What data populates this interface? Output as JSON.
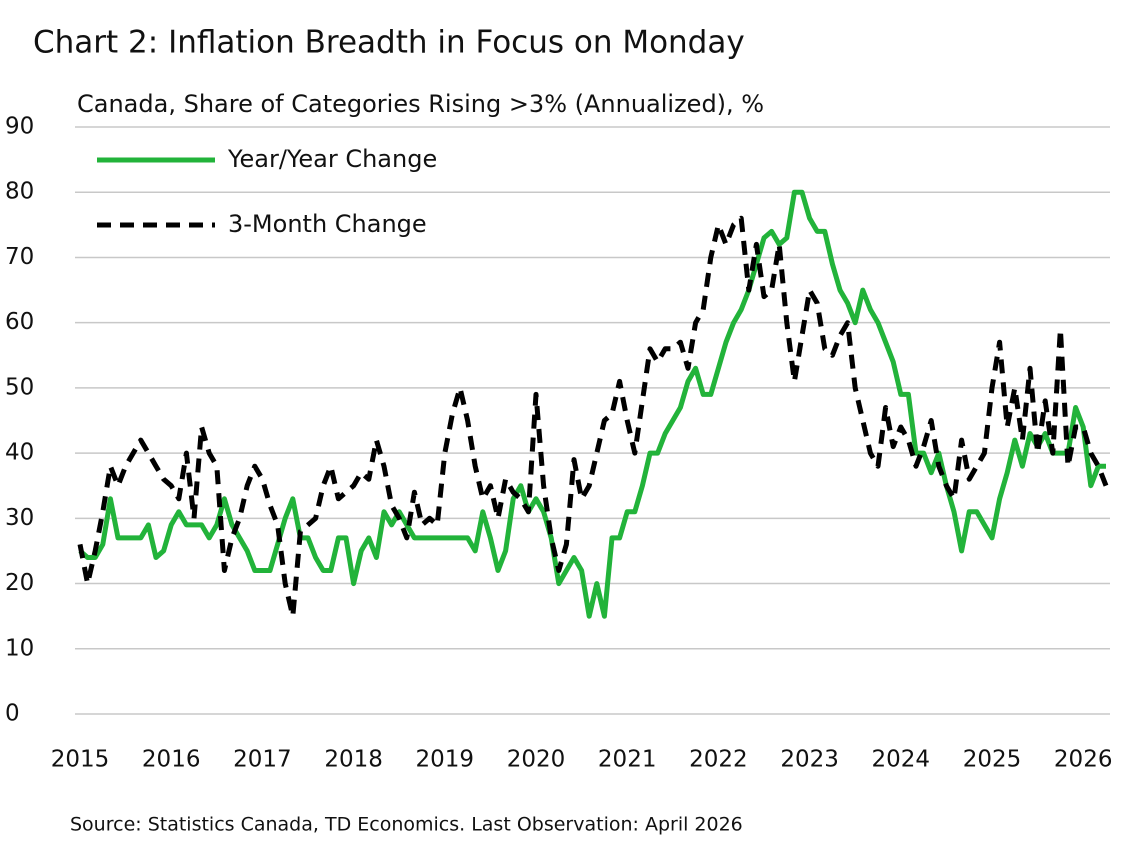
{
  "chart_data": {
    "type": "line",
    "title": "Chart 2: Inflation Breadth in Focus on Monday",
    "subtitle": "Canada, Share of Categories Rising >3% (Annualized), %",
    "source": "Source: Statistics Canada, TD Economics. Last Observation: April 2026",
    "categories": [
      "2015",
      null,
      null,
      null,
      null,
      null,
      null,
      null,
      null,
      null,
      null,
      null,
      "2016",
      null,
      null,
      null,
      null,
      null,
      null,
      null,
      null,
      null,
      null,
      null,
      "2017",
      null,
      null,
      null,
      null,
      null,
      null,
      null,
      null,
      null,
      null,
      null,
      "2018",
      null,
      null,
      null,
      null,
      null,
      null,
      null,
      null,
      null,
      null,
      null,
      "2019",
      null,
      null,
      null,
      null,
      null,
      null,
      null,
      null,
      null,
      null,
      null,
      "2020",
      null,
      null,
      null,
      null,
      null,
      null,
      null,
      null,
      null,
      null,
      null,
      "2021",
      null,
      null,
      null,
      null,
      null,
      null,
      null,
      null,
      null,
      null,
      null,
      "2022",
      null,
      null,
      null,
      null,
      null,
      null,
      null,
      null,
      null,
      null,
      null,
      "2023",
      null,
      null,
      null,
      null,
      null,
      null,
      null,
      null,
      null,
      null,
      null,
      "2024",
      null,
      null,
      null,
      null,
      null,
      null,
      null,
      null,
      null,
      null,
      null,
      "2025",
      null,
      null,
      null,
      null,
      null,
      null,
      null,
      null,
      null,
      null,
      null,
      "2026",
      null,
      null,
      null
    ],
    "series": [
      {
        "name": "Year/Year Change",
        "color": "#22b33a",
        "dash": false,
        "values": [
          25,
          24,
          24,
          26,
          33,
          27,
          27,
          27,
          27,
          29,
          24,
          25,
          29,
          31,
          29,
          29,
          29,
          27,
          29,
          33,
          29,
          27,
          25,
          22,
          22,
          22,
          26,
          30,
          33,
          27,
          27,
          24,
          22,
          22,
          27,
          27,
          20,
          25,
          27,
          24,
          31,
          29,
          31,
          29,
          27,
          27,
          27,
          27,
          27,
          27,
          27,
          27,
          25,
          31,
          27,
          22,
          25,
          33,
          35,
          31,
          33,
          31,
          27,
          20,
          22,
          24,
          22,
          15,
          20,
          15,
          27,
          27,
          31,
          31,
          35,
          40,
          40,
          43,
          45,
          47,
          51,
          53,
          49,
          49,
          53,
          57,
          60,
          62,
          65,
          69,
          73,
          74,
          72,
          73,
          80,
          80,
          76,
          74,
          74,
          69,
          65,
          63,
          60,
          65,
          62,
          60,
          57,
          54,
          49,
          49,
          40,
          40,
          37,
          40,
          35,
          31,
          25,
          31,
          31,
          29,
          27,
          33,
          37,
          42,
          38,
          43,
          41,
          43,
          40,
          40,
          40,
          47,
          44,
          35,
          38,
          38
        ]
      },
      {
        "name": "3-Month Change",
        "color": "#000000",
        "dash": true,
        "values": [
          26,
          20,
          25,
          31,
          38,
          35,
          38,
          40,
          42,
          40,
          38,
          36,
          35,
          33,
          40,
          30,
          44,
          40,
          38,
          22,
          27,
          30,
          35,
          38,
          36,
          32,
          29,
          20,
          15,
          28,
          29,
          30,
          35,
          38,
          33,
          34,
          35,
          37,
          36,
          42,
          38,
          32,
          30,
          27,
          34,
          29,
          30,
          29,
          40,
          46,
          50,
          45,
          38,
          33,
          35,
          30,
          36,
          34,
          33,
          31,
          49,
          35,
          27,
          22,
          26,
          39,
          33,
          35,
          40,
          45,
          46,
          51,
          45,
          40,
          48,
          56,
          54,
          56,
          56,
          57,
          53,
          60,
          62,
          70,
          75,
          72,
          75,
          76,
          65,
          72,
          64,
          65,
          72,
          60,
          51,
          58,
          65,
          63,
          56,
          55,
          58,
          60,
          50,
          45,
          40,
          38,
          47,
          41,
          44,
          42,
          38,
          41,
          45,
          38,
          35,
          33,
          42,
          36,
          38,
          40,
          50,
          57,
          44,
          50,
          42,
          53,
          40,
          48,
          40,
          59,
          38,
          44,
          44,
          40,
          38,
          35
        ]
      }
    ],
    "ylim": [
      0,
      90
    ],
    "yticks": [
      0,
      10,
      20,
      30,
      40,
      50,
      60,
      70,
      80,
      90
    ],
    "grid": true,
    "legend": "top-left"
  }
}
